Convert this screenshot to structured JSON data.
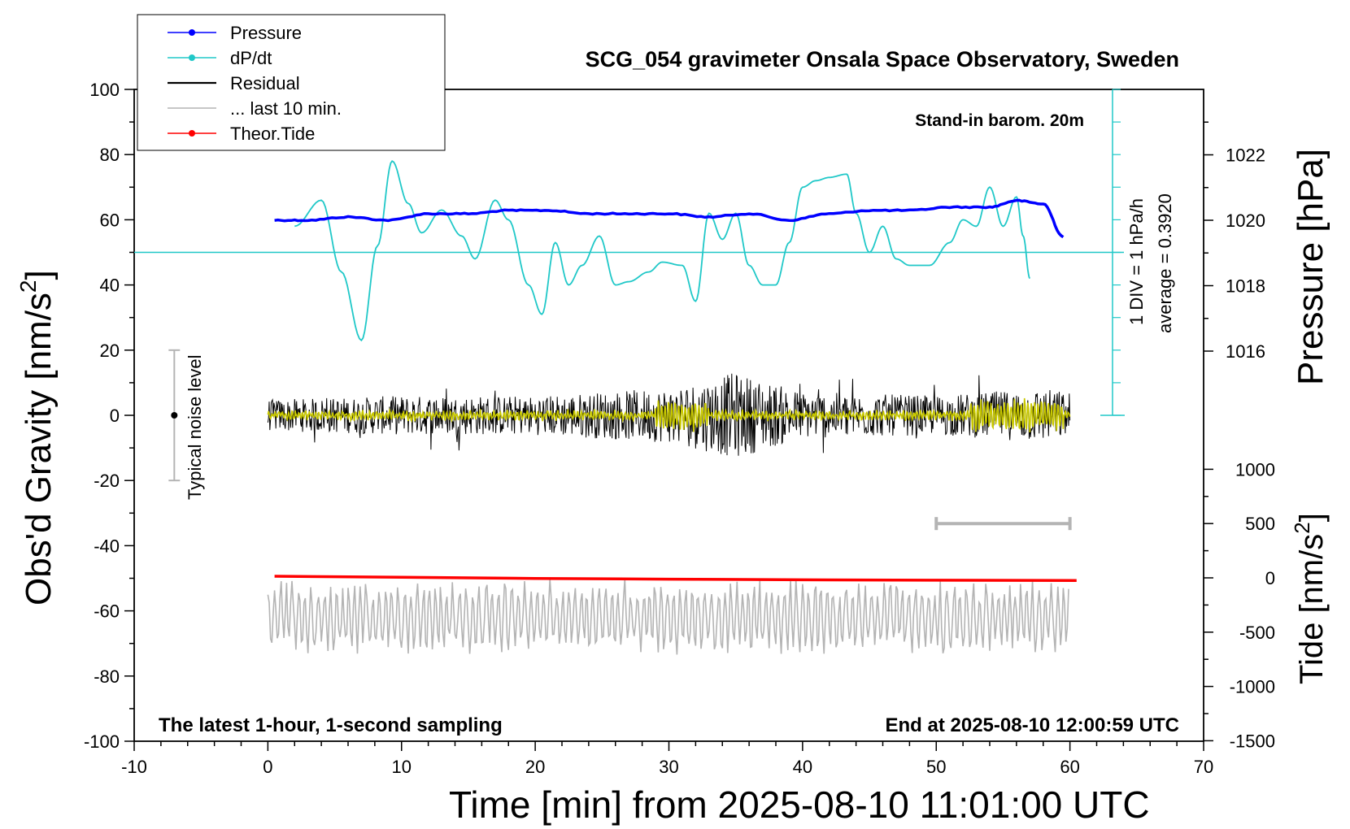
{
  "chart_data": {
    "type": "line",
    "title": "SCG_054 gravimeter Onsala Space Observatory, Sweden",
    "annotation_top_right": "Stand-in barom. 20m",
    "annotation_bottom_left": "The latest 1-hour, 1-second sampling",
    "annotation_bottom_right": "End at 2025-08-10 12:00:59 UTC",
    "xlabel": "Time [min] from 2025-08-10 11:01:00 UTC",
    "xlim": [
      -10,
      70
    ],
    "x_ticks": [
      "-10",
      "0",
      "10",
      "20",
      "30",
      "40",
      "50",
      "60",
      "70"
    ],
    "y_left": {
      "label_main": "Obs'd Gravity [nm/s",
      "label_sup": "2",
      "label_end": "]",
      "ylim": [
        -100,
        100
      ],
      "ticks": [
        "-100",
        "-80",
        "-60",
        "-40",
        "-20",
        "0",
        "20",
        "40",
        "60",
        "80",
        "100"
      ]
    },
    "y_right_pressure": {
      "label": "Pressure [hPa]",
      "ticks": [
        "1016",
        "1018",
        "1020",
        "1022"
      ],
      "tick_values": [
        1016,
        1018,
        1020,
        1022
      ],
      "range_hpa": [
        1010,
        1025
      ]
    },
    "y_right_tide": {
      "label_main": "Tide [nm/s",
      "label_sup": "2",
      "label_end": "]",
      "ticks": [
        "-1500",
        "-1000",
        "-500",
        "0",
        "500",
        "1000"
      ],
      "tick_values": [
        -1500,
        -1000,
        -500,
        0,
        500,
        1000
      ]
    },
    "dpdt_scale_label": "1 DIV = 1 hPa/h",
    "dpdt_average_label": "average = 0.3920",
    "noise_level_label": "Typical noise level",
    "noise_bar": {
      "x": -7,
      "y_low": -20,
      "y_high": 20,
      "center": 0
    },
    "last10_bar": {
      "x_start": 50,
      "x_end": 60,
      "tide": 500
    },
    "legend": [
      {
        "name": "Pressure",
        "color": "#0000ff",
        "marker": true
      },
      {
        "name": "dP/dt",
        "color": "#20c8c8",
        "marker": true
      },
      {
        "name": "Residual",
        "color": "#000000",
        "marker": false
      },
      {
        "name": "... last 10 min.",
        "color": "#b4b4b4",
        "marker": false
      },
      {
        "name": "Theor.Tide",
        "color": "#ff0000",
        "marker": true
      }
    ],
    "colors": {
      "pressure": "#0000ff",
      "dpdt": "#20c8c8",
      "residual": "#000000",
      "smoothed_residual": "#c8c800",
      "last10": "#b4b4b4",
      "tide": "#ff0000"
    },
    "series": [
      {
        "name": "Pressure",
        "axis": "pressure",
        "x": [
          0.5,
          3,
          6,
          9,
          12,
          15,
          18,
          21,
          24,
          27,
          30,
          33,
          36,
          39,
          42,
          45,
          48,
          51,
          54,
          56,
          58,
          59.5
        ],
        "y": [
          1020.0,
          1020.0,
          1020.1,
          1020.0,
          1020.2,
          1020.2,
          1020.3,
          1020.3,
          1020.2,
          1020.2,
          1020.2,
          1020.1,
          1020.2,
          1020.0,
          1020.2,
          1020.3,
          1020.3,
          1020.4,
          1020.4,
          1020.6,
          1020.5,
          1019.5
        ]
      },
      {
        "name": "dP/dt",
        "axis": "left",
        "baseline": 50,
        "x": [
          2,
          4,
          5.5,
          7,
          8.2,
          9.3,
          10.5,
          11.5,
          13,
          14.5,
          15.5,
          17,
          18,
          19.5,
          20.5,
          21.5,
          22.5,
          23.5,
          24.8,
          26,
          27,
          28.5,
          29.5,
          31,
          32,
          33,
          34,
          35,
          36,
          37,
          38,
          39,
          40,
          41,
          42,
          43.3,
          44,
          45,
          46,
          47,
          48,
          49.5,
          51,
          52,
          53,
          54,
          55,
          56,
          56.5,
          57
        ],
        "y": [
          58,
          66,
          44,
          23,
          52,
          78,
          65,
          56,
          63,
          55,
          48,
          66,
          60,
          40,
          31,
          53,
          40,
          46,
          55,
          40,
          41,
          44,
          47,
          46,
          35,
          62,
          54,
          62,
          46,
          40,
          40,
          53,
          70,
          72,
          73,
          74,
          62,
          50,
          58,
          48,
          46,
          46,
          53,
          60,
          58,
          70,
          58,
          67,
          55,
          42
        ]
      },
      {
        "name": "Residual",
        "axis": "left",
        "note": "1-second residual trace around 0 nm/s2, amplitude mostly within +/-10, peaks near +24 and -24 around minute 35",
        "x_range": [
          0,
          60
        ],
        "envelope": [
          [
            0,
            8
          ],
          [
            10,
            10
          ],
          [
            20,
            10
          ],
          [
            30,
            14
          ],
          [
            35,
            22
          ],
          [
            40,
            12
          ],
          [
            50,
            10
          ],
          [
            58,
            14
          ],
          [
            60,
            12
          ]
        ]
      },
      {
        "name": "... last 10 min.",
        "axis": "left",
        "note": "last 10 minutes of residual, magnified and offset, centered near -62",
        "center": -62,
        "x_range": [
          0,
          60
        ]
      },
      {
        "name": "Theor.Tide",
        "axis": "tide",
        "x": [
          0.5,
          10,
          20,
          30,
          40,
          50,
          60.5
        ],
        "y": [
          15,
          5,
          -5,
          -12,
          -18,
          -22,
          -25
        ]
      }
    ]
  }
}
